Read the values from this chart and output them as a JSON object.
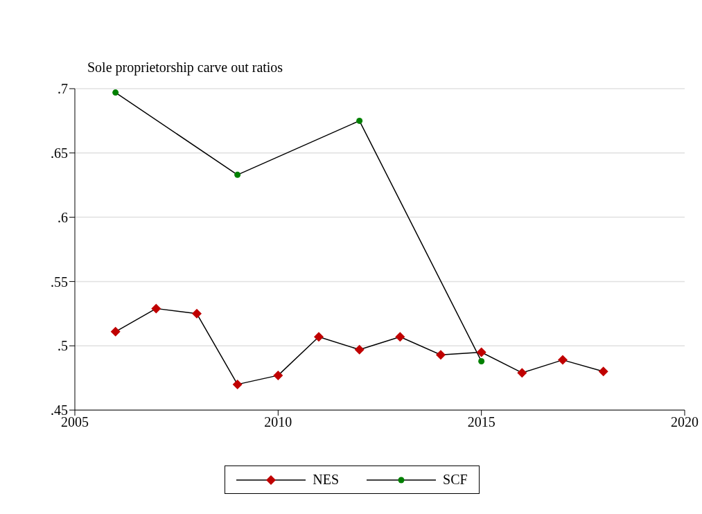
{
  "chart_data": {
    "type": "line",
    "title": "Sole proprietorship carve out ratios",
    "xlim": [
      2005,
      2020
    ],
    "xticks": [
      2005,
      2010,
      2015,
      2020
    ],
    "ylim": [
      0.45,
      0.7
    ],
    "yticks": [
      {
        "value": 0.45,
        "label": ".45"
      },
      {
        "value": 0.5,
        "label": ".5"
      },
      {
        "value": 0.55,
        "label": ".55"
      },
      {
        "value": 0.6,
        "label": ".6"
      },
      {
        "value": 0.65,
        "label": ".65"
      },
      {
        "value": 0.7,
        "label": ".7"
      }
    ],
    "grid": "y",
    "legend": "bottom",
    "series": [
      {
        "name": "NES",
        "color": "#c00000",
        "marker": "diamond",
        "x": [
          2006,
          2007,
          2008,
          2009,
          2010,
          2011,
          2012,
          2013,
          2014,
          2015,
          2016,
          2017,
          2018
        ],
        "values": [
          0.511,
          0.529,
          0.525,
          0.47,
          0.477,
          0.507,
          0.497,
          0.507,
          0.493,
          0.495,
          0.479,
          0.489,
          0.48
        ]
      },
      {
        "name": "SCF",
        "color": "#008000",
        "marker": "circle",
        "x": [
          2006,
          2009,
          2012,
          2015
        ],
        "values": [
          0.697,
          0.633,
          0.675,
          0.488
        ]
      }
    ]
  }
}
